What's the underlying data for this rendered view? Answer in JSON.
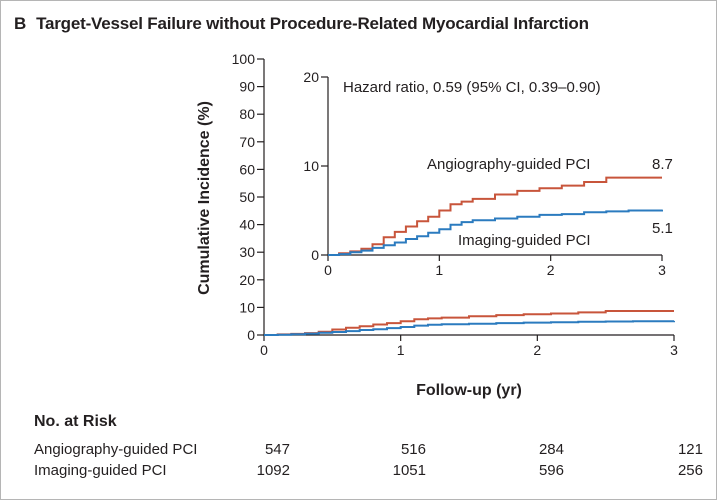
{
  "panel": {
    "letter": "B",
    "title": "Target-Vessel Failure without Procedure-Related Myocardial Infarction"
  },
  "chart_data": {
    "type": "line",
    "xlabel": "Follow-up (yr)",
    "ylabel": "Cumulative Incidence (%)",
    "xlim": [
      0,
      3
    ],
    "ylim": [
      0,
      100
    ],
    "x_ticks": [
      "0",
      "1",
      "2",
      "3"
    ],
    "y_ticks": [
      "0",
      "10",
      "20",
      "30",
      "40",
      "50",
      "60",
      "70",
      "80",
      "90",
      "100"
    ],
    "grid": false,
    "series": [
      {
        "name": "Angiography-guided PCI",
        "color": "#c8553b",
        "x": [
          0,
          0.1,
          0.2,
          0.3,
          0.4,
          0.5,
          0.6,
          0.7,
          0.8,
          0.9,
          1.0,
          1.1,
          1.2,
          1.3,
          1.5,
          1.7,
          1.9,
          2.1,
          2.3,
          2.5,
          2.7,
          3.0
        ],
        "y": [
          0,
          0.2,
          0.4,
          0.7,
          1.2,
          2.0,
          2.6,
          3.2,
          3.8,
          4.3,
          5.0,
          5.7,
          6.0,
          6.3,
          6.8,
          7.2,
          7.5,
          7.8,
          8.2,
          8.7,
          8.7,
          8.7
        ]
      },
      {
        "name": "Imaging-guided PCI",
        "color": "#2b7bbf",
        "x": [
          0,
          0.1,
          0.2,
          0.3,
          0.4,
          0.5,
          0.6,
          0.7,
          0.8,
          0.9,
          1.0,
          1.1,
          1.2,
          1.3,
          1.5,
          1.7,
          1.9,
          2.1,
          2.3,
          2.5,
          2.7,
          3.0
        ],
        "y": [
          0,
          0.1,
          0.3,
          0.5,
          0.8,
          1.1,
          1.4,
          1.8,
          2.1,
          2.5,
          2.9,
          3.4,
          3.7,
          3.9,
          4.1,
          4.3,
          4.5,
          4.6,
          4.8,
          4.9,
          5.0,
          5.1
        ]
      }
    ],
    "inset": {
      "ylim": [
        0,
        20
      ],
      "xlim": [
        0,
        3
      ],
      "x_ticks": [
        "0",
        "1",
        "2",
        "3"
      ],
      "y_ticks": [
        "0",
        "10",
        "20"
      ],
      "annotation": "Hazard ratio, 0.59 (95% CI, 0.39–0.90)",
      "series_labels": [
        {
          "text": "Angiography-guided PCI",
          "end_value": "8.7"
        },
        {
          "text": "Imaging-guided PCI",
          "end_value": "5.1"
        }
      ]
    }
  },
  "risk_table": {
    "title": "No. at Risk",
    "rows": [
      {
        "label": "Angiography-guided PCI",
        "values": [
          "547",
          "516",
          "284",
          "121"
        ]
      },
      {
        "label": "Imaging-guided PCI",
        "values": [
          "1092",
          "1051",
          "596",
          "256"
        ]
      }
    ]
  }
}
